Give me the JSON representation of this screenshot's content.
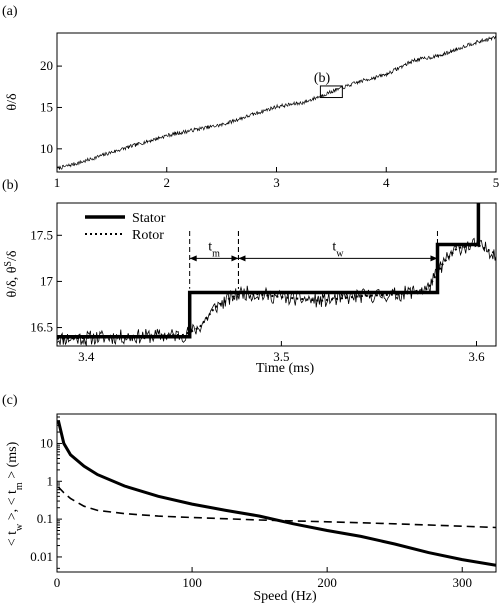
{
  "chart_data": [
    {
      "panel_label": "(a)",
      "type": "line",
      "xlabel": "",
      "ylabel": "θ/δ",
      "xlim": [
        1,
        5
      ],
      "ylim": [
        7.2,
        24
      ],
      "xticks": [
        1,
        2,
        3,
        4,
        5
      ],
      "yticks": [
        10,
        15,
        20
      ],
      "annotation": {
        "text": "(b)",
        "box_x": [
          3.4,
          3.6
        ],
        "box_y": [
          16.2,
          17.6
        ]
      },
      "series": [
        {
          "name": "",
          "x": [
            1.0,
            1.25,
            1.5,
            1.75,
            2.0,
            2.25,
            2.5,
            2.75,
            3.0,
            3.25,
            3.5,
            3.75,
            4.0,
            4.25,
            4.5,
            4.75,
            5.0
          ],
          "y": [
            7.6,
            8.5,
            9.6,
            10.6,
            11.6,
            12.3,
            12.9,
            14.0,
            15.1,
            15.6,
            16.9,
            18.1,
            19.0,
            20.7,
            21.3,
            22.6,
            23.5
          ]
        }
      ]
    },
    {
      "panel_label": "(b)",
      "type": "line",
      "xlabel": "Time (ms)",
      "ylabel": "θ/δ,  θ",
      "ylabel_sup": "S",
      "ylabel_tail": "/δ",
      "xlim": [
        3.385,
        3.61
      ],
      "ylim": [
        16.3,
        17.85
      ],
      "xticks": [
        3.4,
        3.5,
        3.6
      ],
      "yticks": [
        16.5,
        17,
        17.5
      ],
      "annotations": [
        {
          "text": "t",
          "sub": "m",
          "from": 3.453,
          "to": 3.478
        },
        {
          "text": "t",
          "sub": "w",
          "from": 3.478,
          "to": 3.58
        }
      ],
      "series": [
        {
          "name": "Stator",
          "style": "solid-thick",
          "x": [
            3.385,
            3.453,
            3.453,
            3.58,
            3.58,
            3.601,
            3.601
          ],
          "y": [
            16.4,
            16.4,
            16.88,
            16.88,
            17.4,
            17.4,
            17.85
          ]
        },
        {
          "name": "Rotor",
          "style": "dotted",
          "x": [
            3.385,
            3.42,
            3.45,
            3.458,
            3.466,
            3.474,
            3.48,
            3.5,
            3.52,
            3.54,
            3.56,
            3.575,
            3.583,
            3.59,
            3.6,
            3.61
          ],
          "y": [
            16.38,
            16.4,
            16.42,
            16.5,
            16.72,
            16.82,
            16.88,
            16.83,
            16.79,
            16.84,
            16.86,
            16.92,
            17.2,
            17.36,
            17.4,
            17.3
          ]
        }
      ]
    },
    {
      "panel_label": "(c)",
      "type": "line",
      "xlabel": "Speed (Hz)",
      "ylabel": "< t",
      "ylabel_sub1": "w",
      "ylabel_mid": " >, < t",
      "ylabel_sub2": "m",
      "ylabel_tail": " > (ms)",
      "xlim": [
        0,
        325
      ],
      "ylim": [
        0.004,
        60
      ],
      "yscale": "log",
      "xticks": [
        0,
        100,
        200,
        300
      ],
      "yticks": [
        0.01,
        0.1,
        1,
        10
      ],
      "yticklabels": [
        "0.01",
        "0.1",
        "1",
        "10"
      ],
      "series": [
        {
          "name": "",
          "style": "solid",
          "x": [
            1,
            5,
            10,
            20,
            30,
            50,
            75,
            100,
            125,
            150,
            175,
            200,
            225,
            250,
            275,
            300,
            325
          ],
          "y": [
            40,
            10,
            5,
            2.5,
            1.5,
            0.75,
            0.4,
            0.25,
            0.17,
            0.12,
            0.075,
            0.05,
            0.035,
            0.022,
            0.013,
            0.0085,
            0.006
          ]
        },
        {
          "name": "",
          "style": "dashed",
          "x": [
            1,
            5,
            10,
            20,
            30,
            50,
            75,
            100,
            150,
            200,
            250,
            300,
            325
          ],
          "y": [
            0.7,
            0.5,
            0.35,
            0.22,
            0.17,
            0.14,
            0.12,
            0.11,
            0.095,
            0.085,
            0.075,
            0.065,
            0.06
          ]
        }
      ]
    }
  ]
}
